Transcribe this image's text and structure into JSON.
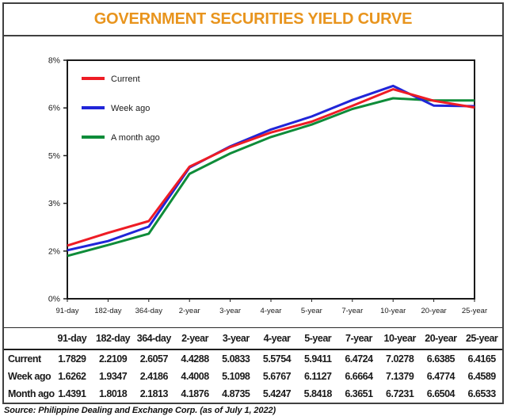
{
  "title": "GOVERNMENT SECURITIES YIELD CURVE",
  "theme": {
    "title_color": "#E8941D",
    "frame_color": "#404040",
    "axis_color": "#1a1a1a",
    "red": "#EE1C25",
    "blue": "#2025D8",
    "green": "#0E8C39"
  },
  "chart_data": {
    "type": "line",
    "title": "",
    "xlabel": "",
    "ylabel": "",
    "grid": false,
    "legend_position": "upper-left",
    "categories": [
      "91-day",
      "182-day",
      "364-day",
      "2-year",
      "3-year",
      "4-year",
      "5-year",
      "7-year",
      "10-year",
      "20-year",
      "25-year"
    ],
    "y_tick_labels": [
      "8%",
      "6%",
      "5%",
      "3%",
      "2%",
      "0%"
    ],
    "y_value_range": [
      0,
      8
    ],
    "series": [
      {
        "name": "Current",
        "color": "#EE1C25",
        "values": [
          1.7829,
          2.2109,
          2.6057,
          4.4288,
          5.0833,
          5.5754,
          5.9411,
          6.4724,
          7.0278,
          6.6385,
          6.4165
        ]
      },
      {
        "name": "Week ago",
        "color": "#2025D8",
        "values": [
          1.6262,
          1.9347,
          2.4186,
          4.4008,
          5.1098,
          5.6767,
          6.1127,
          6.6664,
          7.1379,
          6.4774,
          6.4589
        ]
      },
      {
        "name": "A month ago",
        "color": "#0E8C39",
        "values": [
          1.4391,
          1.8018,
          2.1813,
          4.1876,
          4.8735,
          5.4247,
          5.8418,
          6.3651,
          6.7231,
          6.6504,
          6.6533
        ]
      }
    ]
  },
  "table": {
    "col_headers": [
      "91-day",
      "182-day",
      "364-day",
      "2-year",
      "3-year",
      "4-year",
      "5-year",
      "7-year",
      "10-year",
      "20-year",
      "25-year"
    ],
    "rows": [
      {
        "label": "Current",
        "values": [
          "1.7829",
          "2.2109",
          "2.6057",
          "4.4288",
          "5.0833",
          "5.5754",
          "5.9411",
          "6.4724",
          "7.0278",
          "6.6385",
          "6.4165"
        ]
      },
      {
        "label": "Week ago",
        "values": [
          "1.6262",
          "1.9347",
          "2.4186",
          "4.4008",
          "5.1098",
          "5.6767",
          "6.1127",
          "6.6664",
          "7.1379",
          "6.4774",
          "6.4589"
        ]
      },
      {
        "label": "Month ago",
        "values": [
          "1.4391",
          "1.8018",
          "2.1813",
          "4.1876",
          "4.8735",
          "5.4247",
          "5.8418",
          "6.3651",
          "6.7231",
          "6.6504",
          "6.6533"
        ]
      }
    ]
  },
  "source": "Source: Philippine Dealing and Exchange Corp. (as of July 1, 2022)"
}
